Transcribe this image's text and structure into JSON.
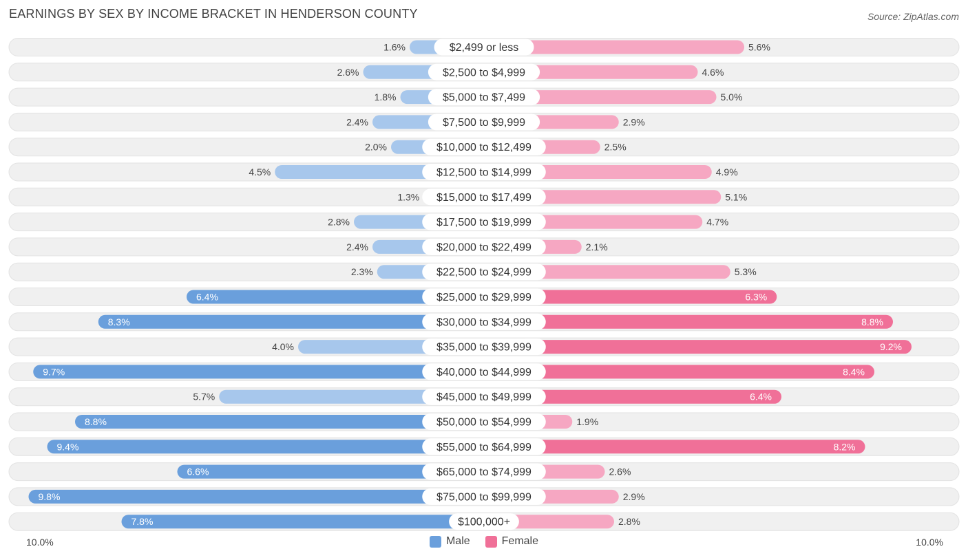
{
  "header": {
    "title": "EARNINGS BY SEX BY INCOME BRACKET IN HENDERSON COUNTY",
    "source": "Source: ZipAtlas.com"
  },
  "axis": {
    "left_label": "10.0%",
    "right_label": "10.0%"
  },
  "legend": {
    "male_label": "Male",
    "female_label": "Female"
  },
  "colors": {
    "male_light": "#a7c7ec",
    "male_dark": "#6a9fdc",
    "female_light": "#f6a7c2",
    "female_dark": "#f07098",
    "track": "#f0f0f0"
  },
  "chart_data": {
    "type": "bar",
    "title": "EARNINGS BY SEX BY INCOME BRACKET IN HENDERSON COUNTY",
    "xlim": [
      -10,
      10
    ],
    "categories": [
      "$2,499 or less",
      "$2,500 to $4,999",
      "$5,000 to $7,499",
      "$7,500 to $9,999",
      "$10,000 to $12,499",
      "$12,500 to $14,999",
      "$15,000 to $17,499",
      "$17,500 to $19,999",
      "$20,000 to $22,499",
      "$22,500 to $24,999",
      "$25,000 to $29,999",
      "$30,000 to $34,999",
      "$35,000 to $39,999",
      "$40,000 to $44,999",
      "$45,000 to $49,999",
      "$50,000 to $54,999",
      "$55,000 to $64,999",
      "$65,000 to $74,999",
      "$75,000 to $99,999",
      "$100,000+"
    ],
    "series": [
      {
        "name": "Male",
        "values": [
          1.6,
          2.6,
          1.8,
          2.4,
          2.0,
          4.5,
          1.3,
          2.8,
          2.4,
          2.3,
          6.4,
          8.3,
          4.0,
          9.7,
          5.7,
          8.8,
          9.4,
          6.6,
          9.8,
          7.8
        ]
      },
      {
        "name": "Female",
        "values": [
          5.6,
          4.6,
          5.0,
          2.9,
          2.5,
          4.9,
          5.1,
          4.7,
          2.1,
          5.3,
          6.3,
          8.8,
          9.2,
          8.4,
          6.4,
          1.9,
          8.2,
          2.6,
          2.9,
          2.8
        ]
      }
    ],
    "value_labels": {
      "male": [
        "1.6%",
        "2.6%",
        "1.8%",
        "2.4%",
        "2.0%",
        "4.5%",
        "1.3%",
        "2.8%",
        "2.4%",
        "2.3%",
        "6.4%",
        "8.3%",
        "4.0%",
        "9.7%",
        "5.7%",
        "8.8%",
        "9.4%",
        "6.6%",
        "9.8%",
        "7.8%"
      ],
      "female": [
        "5.6%",
        "4.6%",
        "5.0%",
        "2.9%",
        "2.5%",
        "4.9%",
        "5.1%",
        "4.7%",
        "2.1%",
        "5.3%",
        "6.3%",
        "8.8%",
        "9.2%",
        "8.4%",
        "6.4%",
        "1.9%",
        "8.2%",
        "2.6%",
        "2.9%",
        "2.8%"
      ]
    },
    "legend_position": "bottom-center"
  }
}
